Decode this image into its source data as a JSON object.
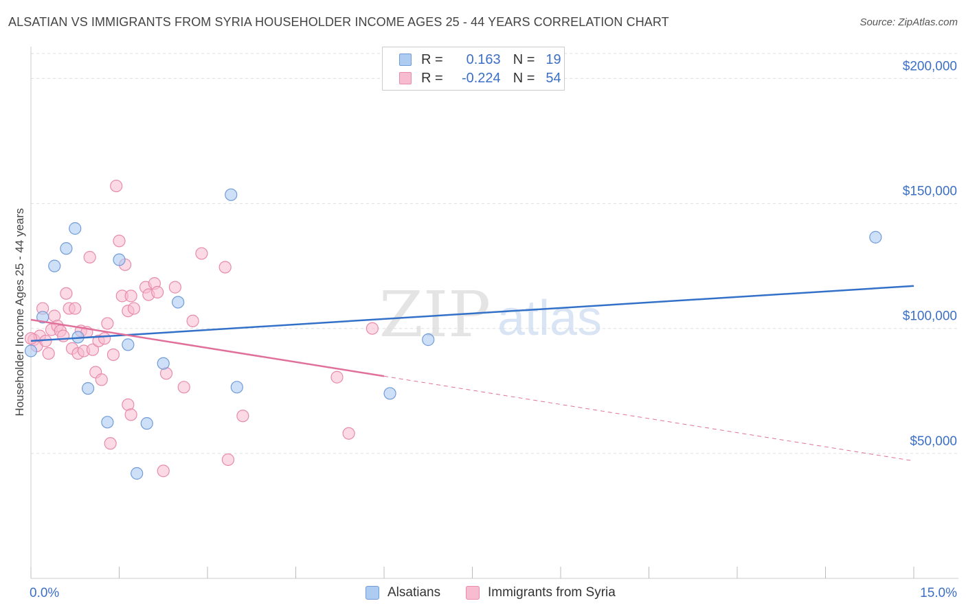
{
  "title": "ALSATIAN VS IMMIGRANTS FROM SYRIA HOUSEHOLDER INCOME AGES 25 - 44 YEARS CORRELATION CHART",
  "source": "Source: ZipAtlas.com",
  "watermark": {
    "zip": "ZIP",
    "atlas": "atlas"
  },
  "legend_top": [
    {
      "r_label": "R =",
      "r_value": "0.163",
      "n_label": "N =",
      "n_value": "19"
    },
    {
      "r_label": "R =",
      "r_value": "-0.224",
      "n_label": "N =",
      "n_value": "54"
    }
  ],
  "legend_bottom": [
    "Alsatians",
    "Immigrants from Syria"
  ],
  "colors": {
    "alsatian_fill": "#aecbf2",
    "alsatian_stroke": "#6f9bd8",
    "alsatian_line": "#3370c8",
    "syria_fill": "#f7bcd0",
    "syria_stroke": "#e88aab",
    "syria_line": "#e0709a",
    "tick_label": "#3b6fc6",
    "grid": "#dddddd"
  },
  "chart_data": {
    "type": "scatter",
    "title": "ALSATIAN VS IMMIGRANTS FROM SYRIA HOUSEHOLDER INCOME AGES 25 - 44 YEARS CORRELATION CHART",
    "xlabel": "",
    "ylabel": "Householder Income Ages 25 - 44 years",
    "xlim": [
      0,
      15
    ],
    "ylim": [
      0,
      210000
    ],
    "x_tick_labels": [
      {
        "value": 0,
        "label": "0.0%"
      },
      {
        "value": 15,
        "label": "15.0%"
      }
    ],
    "y_ticks": [
      {
        "value": 50000,
        "label": "$50,000"
      },
      {
        "value": 100000,
        "label": "$100,000"
      },
      {
        "value": 150000,
        "label": "$150,000"
      },
      {
        "value": 200000,
        "label": "$200,000"
      }
    ],
    "grid": true,
    "legend_position": "top-center",
    "series": [
      {
        "name": "Alsatians",
        "r": 0.163,
        "n": 19,
        "trend": {
          "x": [
            0,
            15
          ],
          "y": [
            95000,
            117000
          ],
          "dashed_after": null
        },
        "points": [
          [
            0.0,
            91000
          ],
          [
            0.2,
            104500
          ],
          [
            0.4,
            125000
          ],
          [
            0.6,
            132000
          ],
          [
            0.75,
            140000
          ],
          [
            0.8,
            96500
          ],
          [
            0.97,
            76000
          ],
          [
            1.3,
            62500
          ],
          [
            1.5,
            127500
          ],
          [
            1.65,
            93500
          ],
          [
            1.8,
            42000
          ],
          [
            1.97,
            62000
          ],
          [
            2.25,
            86000
          ],
          [
            2.5,
            110500
          ],
          [
            3.4,
            153500
          ],
          [
            3.5,
            76500
          ],
          [
            6.1,
            74000
          ],
          [
            6.75,
            95500
          ],
          [
            14.35,
            136500
          ]
        ]
      },
      {
        "name": "Immigrants from Syria",
        "r": -0.224,
        "n": 54,
        "trend": {
          "x": [
            0,
            15
          ],
          "y": [
            103500,
            47000
          ],
          "solid_until": 6.0
        },
        "points": [
          [
            0.05,
            95500
          ],
          [
            0.1,
            93000
          ],
          [
            0.15,
            97000
          ],
          [
            0.2,
            108000
          ],
          [
            0.25,
            95000
          ],
          [
            0.3,
            90000
          ],
          [
            0.35,
            99500
          ],
          [
            0.4,
            105000
          ],
          [
            0.45,
            101000
          ],
          [
            0.5,
            99000
          ],
          [
            0.55,
            97000
          ],
          [
            0.6,
            114000
          ],
          [
            0.65,
            108000
          ],
          [
            0.7,
            92000
          ],
          [
            0.75,
            108000
          ],
          [
            0.8,
            90000
          ],
          [
            0.85,
            99000
          ],
          [
            0.9,
            91000
          ],
          [
            0.95,
            98500
          ],
          [
            1.0,
            128500
          ],
          [
            1.05,
            91500
          ],
          [
            1.1,
            82500
          ],
          [
            1.15,
            95000
          ],
          [
            1.2,
            79500
          ],
          [
            1.25,
            96000
          ],
          [
            1.3,
            102000
          ],
          [
            1.35,
            54000
          ],
          [
            1.4,
            89500
          ],
          [
            1.45,
            157000
          ],
          [
            1.5,
            135000
          ],
          [
            1.55,
            113000
          ],
          [
            1.6,
            125500
          ],
          [
            1.65,
            107000
          ],
          [
            1.7,
            113000
          ],
          [
            1.75,
            108000
          ],
          [
            1.65,
            69500
          ],
          [
            1.7,
            65500
          ],
          [
            1.95,
            116500
          ],
          [
            2.0,
            113500
          ],
          [
            2.1,
            118000
          ],
          [
            2.15,
            114500
          ],
          [
            2.25,
            43000
          ],
          [
            2.3,
            82000
          ],
          [
            2.45,
            116500
          ],
          [
            2.6,
            76500
          ],
          [
            2.75,
            103000
          ],
          [
            2.9,
            130000
          ],
          [
            3.3,
            124500
          ],
          [
            3.35,
            47500
          ],
          [
            3.6,
            65000
          ],
          [
            5.2,
            80500
          ],
          [
            5.4,
            58000
          ],
          [
            5.8,
            100000
          ],
          [
            0.0,
            96000
          ]
        ]
      }
    ]
  }
}
